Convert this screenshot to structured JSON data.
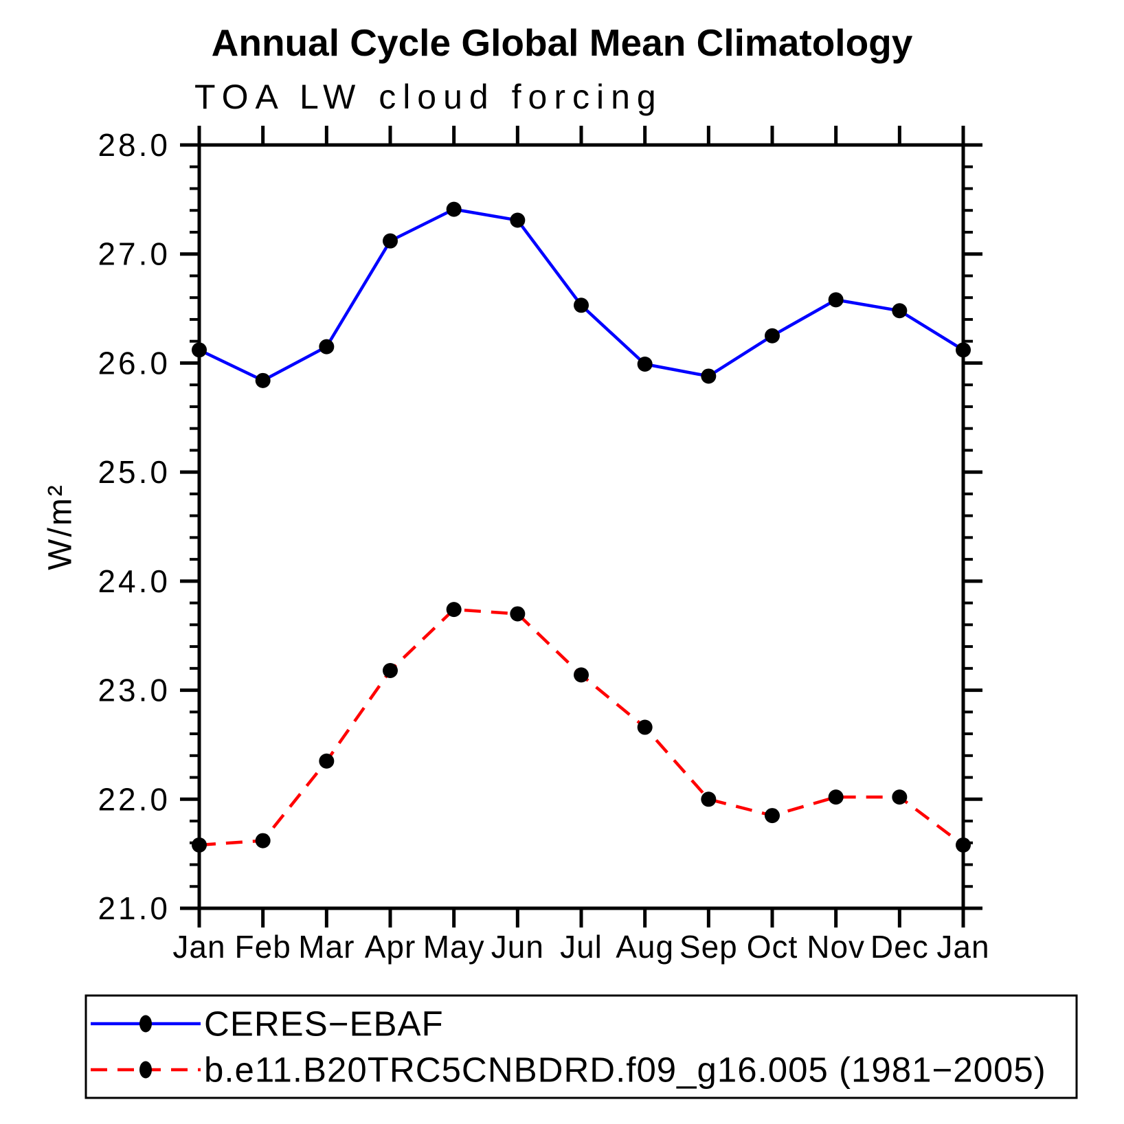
{
  "chart_data": {
    "type": "line",
    "title": "Annual Cycle Global Mean Climatology",
    "subtitle": "TOA LW cloud forcing",
    "categories": [
      "Jan",
      "Feb",
      "Mar",
      "Apr",
      "May",
      "Jun",
      "Jul",
      "Aug",
      "Sep",
      "Oct",
      "Nov",
      "Dec",
      "Jan"
    ],
    "xlabel": "",
    "ylabel": "W/m²",
    "ylim": [
      21.0,
      28.0
    ],
    "y_major_tick_interval": 1.0,
    "y_minor_tick_interval": 0.2,
    "y_tick_labels": [
      "21.0",
      "22.0",
      "23.0",
      "24.0",
      "25.0",
      "26.0",
      "27.0",
      "28.0"
    ],
    "grid": false,
    "legend_position": "bottom-left-box",
    "series": [
      {
        "name": "CERES−EBAF",
        "color": "#0000ff",
        "line_style": "solid",
        "marker": "filled-circle",
        "marker_color": "#000000",
        "values": [
          26.12,
          25.84,
          26.15,
          27.12,
          27.41,
          27.31,
          26.53,
          25.99,
          25.88,
          26.25,
          26.58,
          26.48,
          26.12
        ]
      },
      {
        "name": "b.e11.B20TRC5CNBDRD.f09_g16.005 (1981−2005)",
        "color": "#ff0000",
        "line_style": "dashed",
        "marker": "filled-circle",
        "marker_color": "#000000",
        "values": [
          21.58,
          21.62,
          22.35,
          23.18,
          23.74,
          23.7,
          23.14,
          22.66,
          22.0,
          21.85,
          22.02,
          22.02,
          21.58
        ]
      }
    ]
  },
  "colors": {
    "background": "#ffffff",
    "axis": "#000000",
    "series_obs": "#0000ff",
    "series_model": "#ff0000",
    "marker": "#000000"
  }
}
